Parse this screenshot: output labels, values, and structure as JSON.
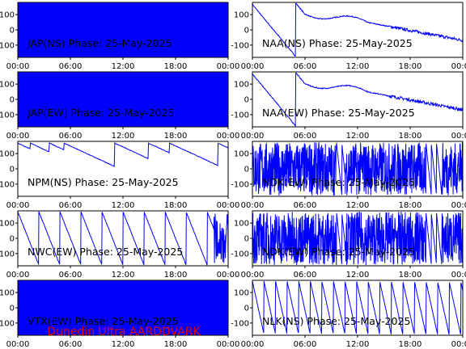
{
  "footer": "Dunedin Ultra AARDDVARK",
  "chart_data": [
    {
      "type": "line",
      "label": "JAP(NS) Phase: 25-May-2025",
      "pattern": "solid",
      "x_ticks": [
        "00:00",
        "06:00",
        "12:00",
        "18:00",
        "00:00"
      ],
      "y_ticks": [
        100,
        0,
        -100
      ],
      "ylim": [
        -180,
        180
      ],
      "xlim": [
        0,
        24
      ],
      "color": "#0000ff"
    },
    {
      "type": "line",
      "label": "NAA(NS) Phase: 25-May-2025",
      "pattern": "ramps",
      "x_ticks": [
        "00:00",
        "06:00",
        "12:00",
        "18:00",
        "00:00"
      ],
      "y_ticks": [
        100,
        0,
        -100
      ],
      "ylim": [
        -180,
        180
      ],
      "xlim": [
        0,
        24
      ],
      "color": "#0000ff"
    },
    {
      "type": "line",
      "label": "JAP(EW) Phase: 25-May-2025",
      "pattern": "solid",
      "x_ticks": [
        "00:00",
        "06:00",
        "12:00",
        "18:00",
        "00:00"
      ],
      "y_ticks": [
        100,
        0,
        -100
      ],
      "ylim": [
        -180,
        180
      ],
      "xlim": [
        0,
        24
      ],
      "color": "#0000ff"
    },
    {
      "type": "line",
      "label": "NAA(EW) Phase: 25-May-2025",
      "pattern": "ramps",
      "x_ticks": [
        "00:00",
        "06:00",
        "12:00",
        "18:00",
        "00:00"
      ],
      "y_ticks": [
        100,
        0,
        -100
      ],
      "ylim": [
        -180,
        180
      ],
      "xlim": [
        0,
        24
      ],
      "color": "#0000ff"
    },
    {
      "type": "line",
      "label": "NPM(NS) Phase: 25-May-2025",
      "pattern": "slopes",
      "x_ticks": [
        "00:00",
        "06:00",
        "12:00",
        "18:00",
        "00:00"
      ],
      "y_ticks": [
        100,
        0,
        -100
      ],
      "ylim": [
        -180,
        180
      ],
      "xlim": [
        0,
        24
      ],
      "color": "#0000ff"
    },
    {
      "type": "line",
      "label": "NDK(EW) Phase: 25-May-2025",
      "pattern": "dense",
      "x_ticks": [
        "00:00",
        "06:00",
        "12:00",
        "18:00",
        "00:00"
      ],
      "y_ticks": [
        100,
        0,
        -100
      ],
      "ylim": [
        -180,
        180
      ],
      "xlim": [
        0,
        24
      ],
      "color": "#0000ff"
    },
    {
      "type": "line",
      "label": "NWC(EW) Phase: 25-May-2025",
      "pattern": "sawtooth",
      "x_ticks": [
        "00:00",
        "06:00",
        "12:00",
        "18:00",
        "00:00"
      ],
      "y_ticks": [
        100,
        0,
        -100
      ],
      "ylim": [
        -180,
        180
      ],
      "xlim": [
        0,
        24
      ],
      "color": "#0000ff"
    },
    {
      "type": "line",
      "label": "NDK(EW) Phase: 25-May-2025",
      "pattern": "dense",
      "x_ticks": [
        "00:00",
        "06:00",
        "12:00",
        "18:00",
        "00:00"
      ],
      "y_ticks": [
        100,
        0,
        -100
      ],
      "ylim": [
        -180,
        180
      ],
      "xlim": [
        0,
        24
      ],
      "color": "#0000ff"
    },
    {
      "type": "line",
      "label": "VTX(EW) Phase: 25-May-2025",
      "pattern": "solid",
      "x_ticks": [
        "00:00",
        "06:00",
        "12:00",
        "18:00",
        "00:00"
      ],
      "y_ticks": [
        100,
        0,
        -100
      ],
      "ylim": [
        -180,
        180
      ],
      "xlim": [
        0,
        24
      ],
      "color": "#0000ff"
    },
    {
      "type": "line",
      "label": "NLK(NS) Phase: 25-May-2025",
      "pattern": "sawtooth_fast",
      "x_ticks": [
        "00:00",
        "06:00",
        "12:00",
        "18:00",
        "00:00"
      ],
      "y_ticks": [
        100,
        0,
        -100
      ],
      "ylim": [
        -180,
        180
      ],
      "xlim": [
        0,
        24
      ],
      "color": "#0000ff"
    }
  ]
}
